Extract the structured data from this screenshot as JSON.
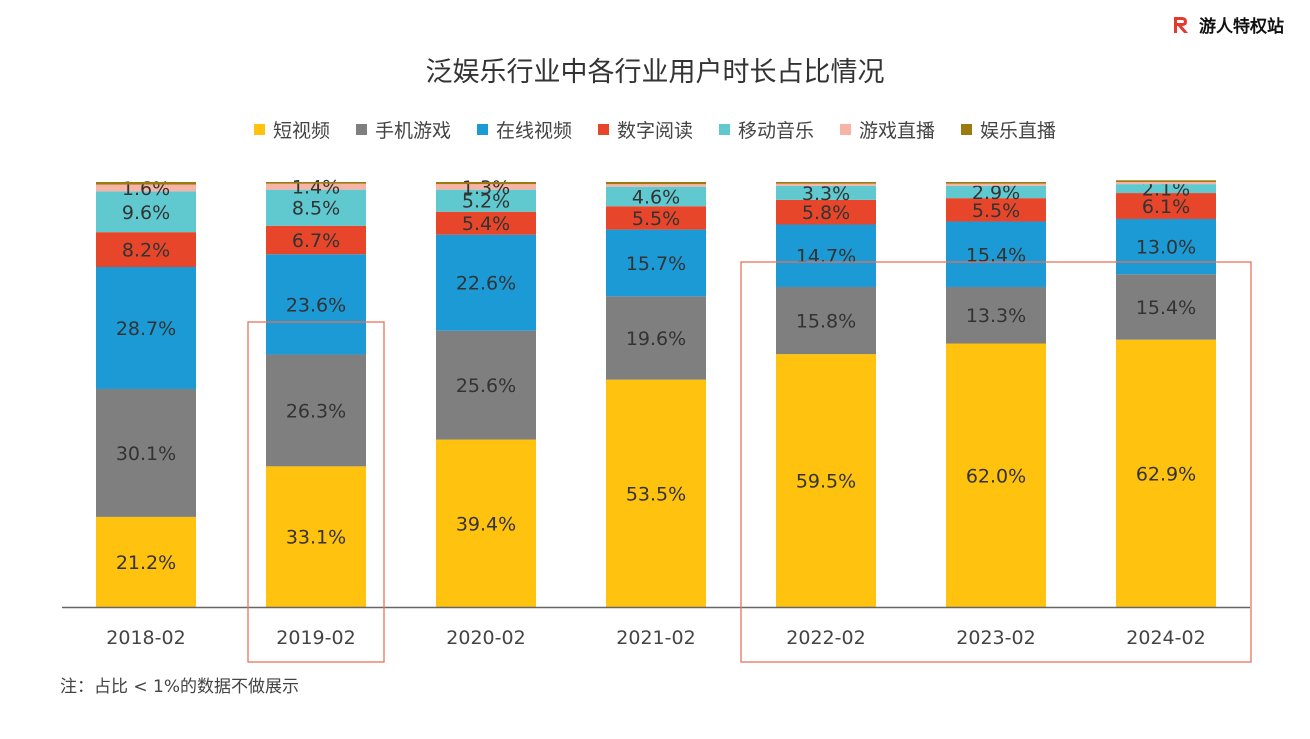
{
  "brand": {
    "name": "游人特权站",
    "icon": "r-logo-icon"
  },
  "chart_data": {
    "type": "bar",
    "stacked": true,
    "title": "泛娱乐行业中各行业用户时长占比情况",
    "categories": [
      "2018-02",
      "2019-02",
      "2020-02",
      "2021-02",
      "2022-02",
      "2023-02",
      "2024-02"
    ],
    "series": [
      {
        "name": "短视频",
        "color": "#FFC20E",
        "values": [
          21.2,
          33.1,
          39.4,
          53.5,
          59.5,
          62.0,
          62.9
        ]
      },
      {
        "name": "手机游戏",
        "color": "#7F7F7F",
        "values": [
          30.1,
          26.3,
          25.6,
          19.6,
          15.8,
          13.3,
          15.4
        ]
      },
      {
        "name": "在线视频",
        "color": "#1B9AD6",
        "values": [
          28.7,
          23.6,
          22.6,
          15.7,
          14.7,
          15.4,
          13.0
        ]
      },
      {
        "name": "数字阅读",
        "color": "#E8462A",
        "values": [
          8.2,
          6.7,
          5.4,
          5.5,
          5.8,
          5.5,
          6.1
        ]
      },
      {
        "name": "移动音乐",
        "color": "#5FC9CF",
        "values": [
          9.6,
          8.5,
          5.2,
          4.6,
          3.3,
          2.9,
          2.1
        ]
      },
      {
        "name": "游戏直播",
        "color": "#F6B3A6",
        "values": [
          1.6,
          1.4,
          1.3,
          0.6,
          0.5,
          0.5,
          0.5
        ]
      },
      {
        "name": "娱乐直播",
        "color": "#9C7A10",
        "values": [
          0.6,
          0.4,
          0.5,
          0.5,
          0.4,
          0.4,
          0.4
        ]
      }
    ],
    "highlighted_categories": [
      [
        "2019-02"
      ],
      [
        "2022-02",
        "2023-02",
        "2024-02"
      ]
    ],
    "highlight_color": "#E8735A",
    "ylim": [
      0,
      100
    ],
    "grid": false,
    "legend_position": "top",
    "note": "注：占比 < 1%的数据不做展示"
  }
}
